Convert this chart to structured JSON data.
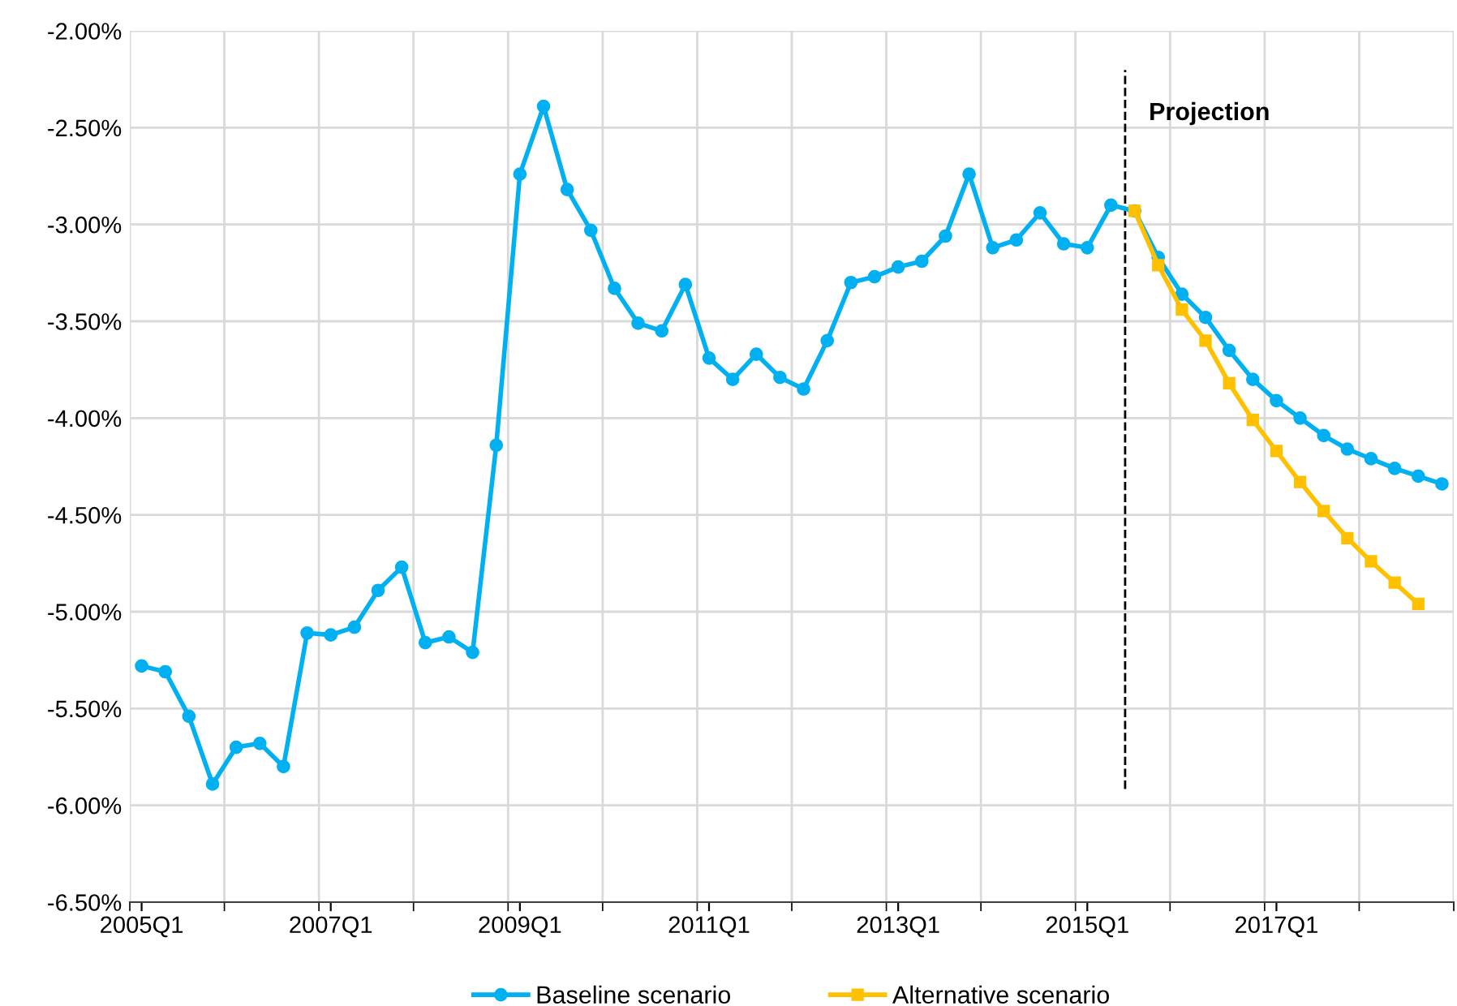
{
  "chart_data": {
    "type": "line",
    "categories": [
      "2005Q1",
      null,
      null,
      null,
      null,
      null,
      null,
      null,
      "2007Q1",
      null,
      null,
      null,
      null,
      null,
      null,
      null,
      "2009Q1",
      null,
      null,
      null,
      null,
      null,
      null,
      null,
      "2011Q1",
      null,
      null,
      null,
      null,
      null,
      null,
      null,
      "2013Q1",
      null,
      null,
      null,
      null,
      null,
      null,
      null,
      "2015Q1",
      null,
      null,
      null,
      null,
      null,
      null,
      null,
      "2017Q1",
      null,
      null,
      null,
      null,
      null,
      null,
      null
    ],
    "series": [
      {
        "name": "Baseline scenario",
        "color": "#00b0f0",
        "marker": "circle",
        "values": [
          -5.28,
          -5.31,
          -5.54,
          -5.89,
          -5.7,
          -5.68,
          -5.8,
          -5.11,
          -5.12,
          -5.08,
          -4.89,
          -4.77,
          -5.16,
          -5.13,
          -5.21,
          -4.14,
          -2.74,
          -2.39,
          -2.82,
          -3.03,
          -3.33,
          -3.51,
          -3.55,
          -3.31,
          -3.69,
          -3.8,
          -3.67,
          -3.79,
          -3.85,
          -3.6,
          -3.3,
          -3.27,
          -3.22,
          -3.19,
          -3.06,
          -2.74,
          -3.12,
          -3.08,
          -2.94,
          -3.1,
          -3.12,
          -2.9,
          -2.93,
          -3.17,
          -3.36,
          -3.48,
          -3.65,
          -3.8,
          -3.91,
          -4.0,
          -4.09,
          -4.16,
          -4.21,
          -4.26,
          -4.3,
          -4.34
        ]
      },
      {
        "name": "Alternative scenario",
        "color": "#ffc000",
        "marker": "square",
        "values": [
          null,
          null,
          null,
          null,
          null,
          null,
          null,
          null,
          null,
          null,
          null,
          null,
          null,
          null,
          null,
          null,
          null,
          null,
          null,
          null,
          null,
          null,
          null,
          null,
          null,
          null,
          null,
          null,
          null,
          null,
          null,
          null,
          null,
          null,
          null,
          null,
          null,
          null,
          null,
          null,
          null,
          null,
          -2.93,
          -3.21,
          -3.44,
          -3.6,
          -3.82,
          -4.01,
          -4.17,
          -4.33,
          -4.48,
          -4.62,
          -4.74,
          -4.85,
          -4.96,
          null
        ]
      }
    ],
    "ylim": [
      -6.5,
      -2.0
    ],
    "yticks": [
      {
        "value": -6.5,
        "label": "-6.50%"
      },
      {
        "value": -6.0,
        "label": "-6.00%"
      },
      {
        "value": -5.5,
        "label": "-5.50%"
      },
      {
        "value": -5.0,
        "label": "-5.00%"
      },
      {
        "value": -4.5,
        "label": "-4.50%"
      },
      {
        "value": -4.0,
        "label": "-4.00%"
      },
      {
        "value": -3.5,
        "label": "-3.50%"
      },
      {
        "value": -3.0,
        "label": "-3.00%"
      },
      {
        "value": -2.5,
        "label": "-2.50%"
      },
      {
        "value": -2.0,
        "label": "-2.00%"
      }
    ],
    "annotations": [
      "Projection"
    ],
    "grid": true,
    "legend": "bottom",
    "line_style": "solid"
  }
}
